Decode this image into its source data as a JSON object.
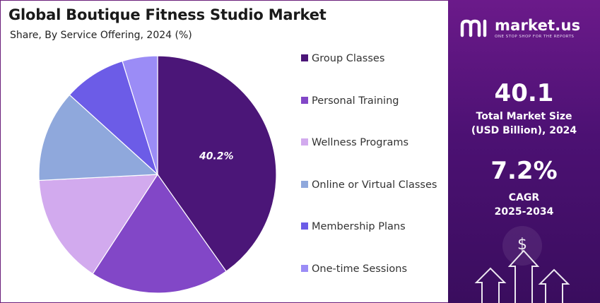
{
  "chart_data": {
    "type": "pie",
    "title": "Global Boutique Fitness Studio Market",
    "subtitle": "Share, By Service Offering, 2024 (%)",
    "slices": [
      {
        "name": "Group Classes",
        "value": 40.2,
        "color": "#4b1678",
        "label": "40.2%"
      },
      {
        "name": "Personal Training",
        "value": 19.0,
        "color": "#8247c7",
        "label": ""
      },
      {
        "name": "Wellness Programs",
        "value": 15.0,
        "color": "#d2aaee",
        "label": ""
      },
      {
        "name": "Online or Virtual Classes",
        "value": 12.5,
        "color": "#8fa8dc",
        "label": ""
      },
      {
        "name": "Membership Plans",
        "value": 8.5,
        "color": "#6c5ce7",
        "label": ""
      },
      {
        "name": "One-time Sessions",
        "value": 4.8,
        "color": "#9b8cf6",
        "label": ""
      }
    ],
    "legend_position": "right"
  },
  "brand": {
    "name": "market.us",
    "tagline": "ONE STOP SHOP FOR THE REPORTS"
  },
  "stats": {
    "market_size_value": "40.1",
    "market_size_label_line1": "Total Market Size",
    "market_size_label_line2": "(USD Billion), 2024",
    "cagr_value": "7.2%",
    "cagr_label_line1": "CAGR",
    "cagr_label_line2": "2025-2034"
  },
  "icons": [
    "dollar-icon",
    "up-arrow-icon"
  ]
}
